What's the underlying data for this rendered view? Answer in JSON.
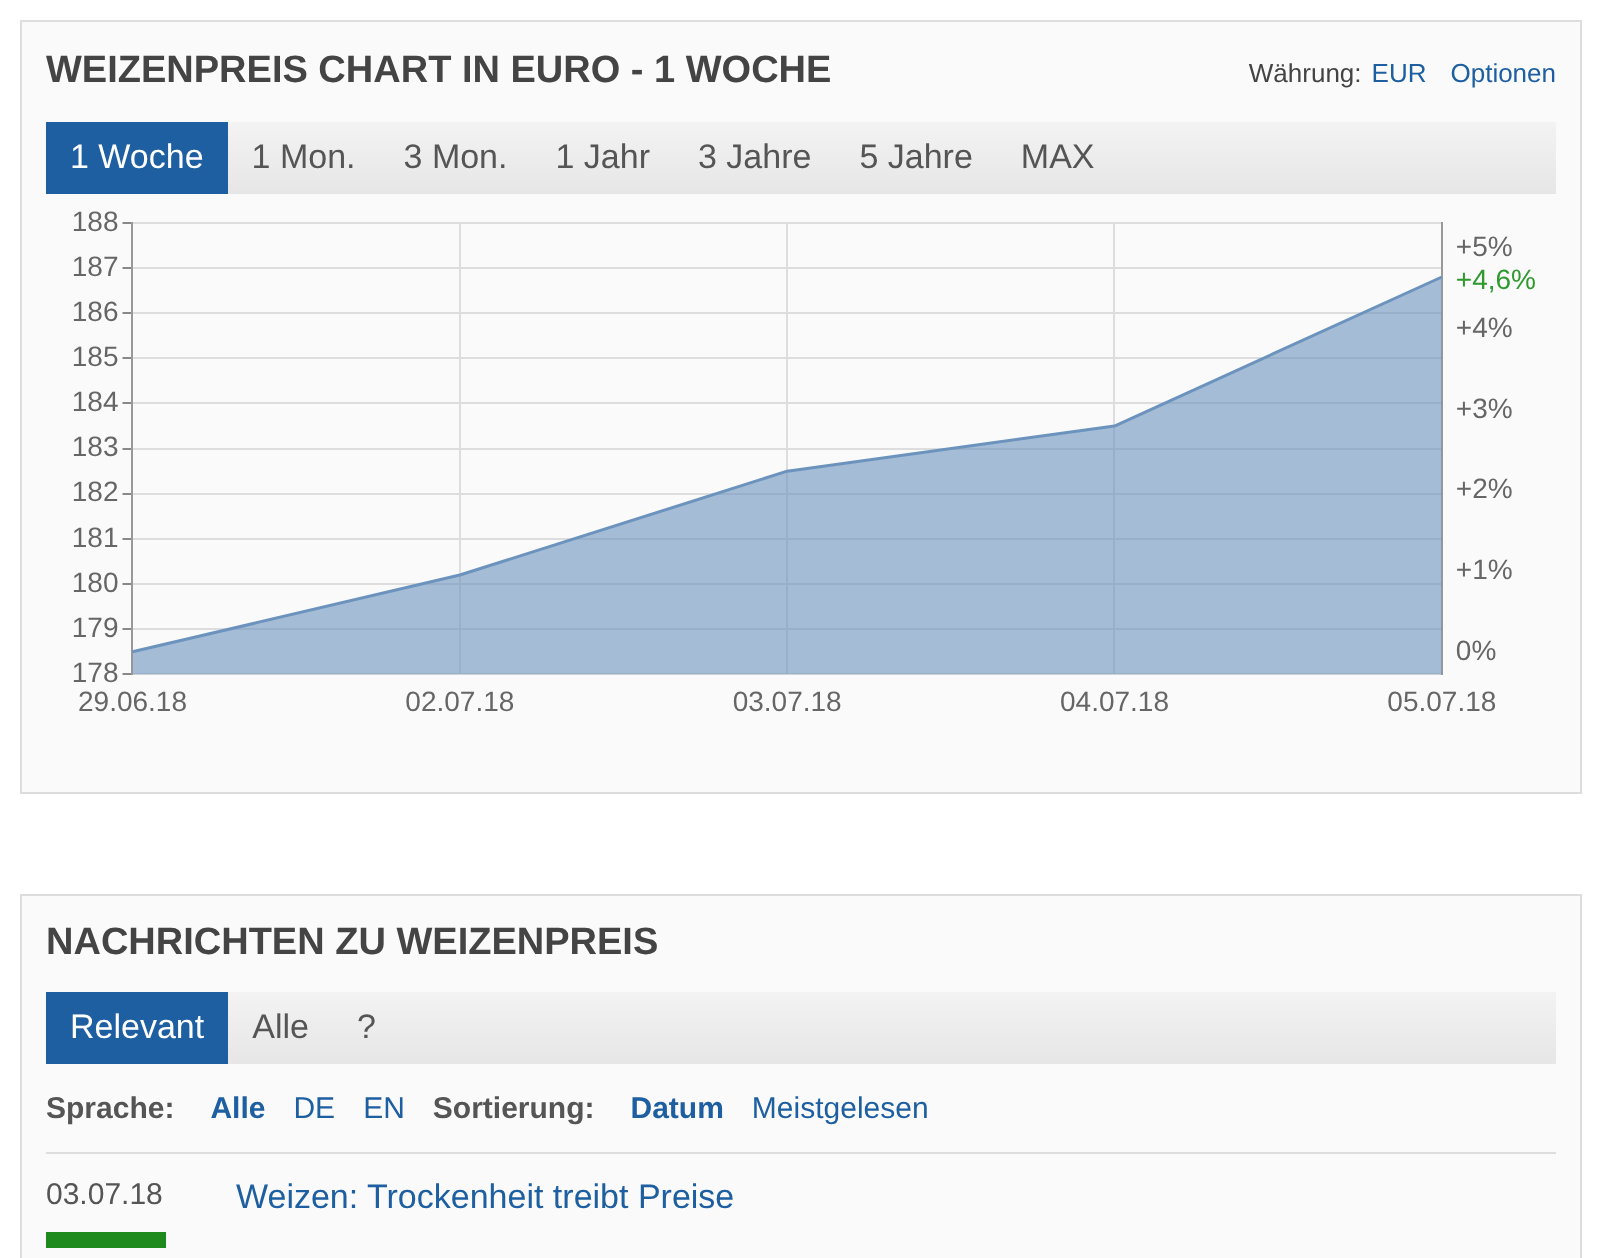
{
  "chart_data": [
    {
      "type": "area",
      "title": "WEIZENPREIS CHART IN EURO - 1 WOCHE",
      "annotations": [
        "Währung:",
        "EUR",
        "Optionen",
        "1 Woche",
        "1 Mon.",
        "3 Mon.",
        "1 Jahr",
        "3 Jahre",
        "5 Jahre",
        "MAX"
      ],
      "categories": [
        "29.06.18",
        "02.07.18",
        "03.07.18",
        "04.07.18",
        "05.07.18"
      ],
      "series": [
        {
          "color": "#6b93bd",
          "values": [
            178.5,
            180.2,
            182.5,
            183.5,
            186.8
          ]
        }
      ],
      "ylim": [
        178,
        188
      ],
      "yticks": [
        178,
        179,
        180,
        181,
        182,
        183,
        184,
        185,
        186,
        187,
        188
      ],
      "y2lim": [
        -0.28,
        5.32
      ],
      "y2ticks": [
        {
          "value": 0,
          "label": "0%"
        },
        {
          "value": 1,
          "label": "+1%"
        },
        {
          "value": 2,
          "label": "+2%"
        },
        {
          "value": 3,
          "label": "+3%"
        },
        {
          "value": 4,
          "label": "+4%"
        },
        {
          "value": 4.6,
          "label": "+4,6%"
        },
        {
          "value": 5,
          "label": "+5%"
        }
      ],
      "grid": true,
      "marker": "none"
    },
    {
      "type": "other",
      "title": "NACHRICHTEN ZU WEIZENPREIS",
      "annotations": [
        "Relevant",
        "Alle",
        "?",
        "Sprache:",
        "Alle",
        "DE",
        "EN",
        "Sortierung:",
        "Datum",
        "Meistgelesen",
        "03.07.18",
        "Weizen: Trockenheit treibt Preise"
      ]
    }
  ]
}
